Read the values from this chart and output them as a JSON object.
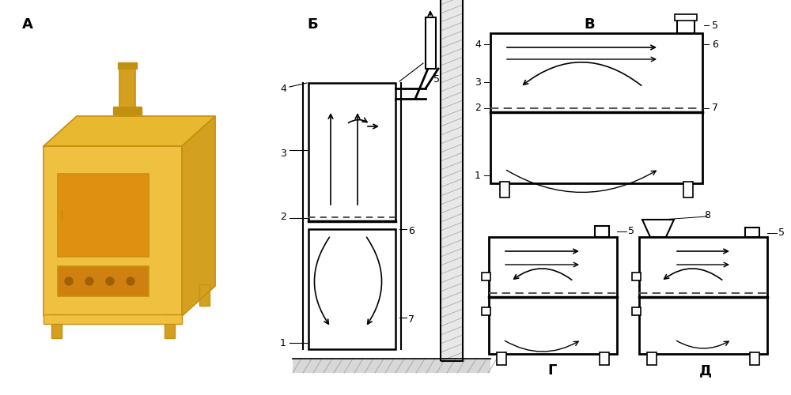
{
  "bg_color": "#ffffff",
  "label_A": "А",
  "label_B": "Б",
  "label_V": "В",
  "label_G": "Г",
  "label_D": "Д",
  "line_color": "#000000",
  "stove_color": "#f0c040",
  "stove_outline": "#c89010",
  "stove_side_color": "#d4a020",
  "stove_top_color": "#e8b830",
  "figsize": [
    10,
    5
  ],
  "dpi": 100
}
